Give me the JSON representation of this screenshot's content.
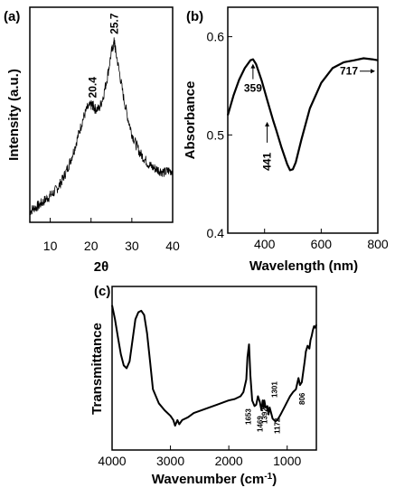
{
  "chart_data": [
    {
      "panel": "(a)",
      "type": "line",
      "xlabel": "2θ",
      "ylabel": "Intensity (a.u.)",
      "xlim": [
        5,
        40
      ],
      "xticks": [
        "10",
        "20",
        "30",
        "40"
      ],
      "xtick_values": [
        10,
        20,
        30,
        40
      ],
      "ylim": [
        0,
        1
      ],
      "series": [
        {
          "x": [
            5,
            6,
            7,
            8,
            9,
            10,
            11,
            12,
            13,
            14,
            15,
            16,
            17,
            18,
            19,
            20,
            20.4,
            21,
            22,
            23,
            24,
            25,
            25.7,
            26,
            27,
            28,
            29,
            30,
            31,
            32,
            33,
            34,
            35,
            36,
            37,
            38,
            39,
            40
          ],
          "y": [
            0.02,
            0.04,
            0.05,
            0.07,
            0.09,
            0.11,
            0.13,
            0.16,
            0.2,
            0.25,
            0.31,
            0.38,
            0.46,
            0.54,
            0.6,
            0.62,
            0.62,
            0.6,
            0.6,
            0.67,
            0.78,
            0.92,
            0.98,
            0.93,
            0.8,
            0.66,
            0.55,
            0.46,
            0.4,
            0.35,
            0.32,
            0.29,
            0.27,
            0.26,
            0.25,
            0.24,
            0.25,
            0.25
          ]
        }
      ],
      "annotations": [
        {
          "text": "20.4",
          "x": 20.4,
          "y": 0.62
        },
        {
          "text": "25.7",
          "x": 25.7,
          "y": 0.98
        }
      ]
    },
    {
      "panel": "(b)",
      "type": "line",
      "xlabel": "Wavelength (nm)",
      "ylabel": "Absorbance",
      "xlim": [
        270,
        800
      ],
      "ylim": [
        0.4,
        0.63
      ],
      "xticks": [
        "400",
        "600",
        "800"
      ],
      "xtick_values": [
        400,
        600,
        800
      ],
      "yticks": [
        "0.4",
        "0.5",
        "0.6"
      ],
      "ytick_values": [
        0.4,
        0.5,
        0.6
      ],
      "series": [
        {
          "x": [
            270,
            290,
            310,
            330,
            350,
            359,
            370,
            390,
            410,
            430,
            441,
            460,
            480,
            490,
            500,
            510,
            530,
            560,
            600,
            640,
            680,
            717,
            750,
            780,
            800
          ],
          "y": [
            0.52,
            0.54,
            0.556,
            0.568,
            0.576,
            0.577,
            0.572,
            0.555,
            0.535,
            0.515,
            0.505,
            0.487,
            0.47,
            0.464,
            0.465,
            0.472,
            0.495,
            0.527,
            0.553,
            0.568,
            0.574,
            0.576,
            0.578,
            0.577,
            0.576
          ]
        }
      ],
      "annotations": [
        {
          "text": "359",
          "x": 359,
          "y": 0.577
        },
        {
          "text": "441",
          "x": 441,
          "y": 0.505
        },
        {
          "text": "717",
          "x": 717,
          "y": 0.576
        }
      ]
    },
    {
      "panel": "(c)",
      "type": "line",
      "xlabel": "Wavenumber (cm⁻¹)",
      "ylabel": "Transmittance",
      "xlim": [
        4000,
        500
      ],
      "ylim": [
        0,
        1
      ],
      "xticks": [
        "4000",
        "3000",
        "2000",
        "1000"
      ],
      "xtick_values": [
        4000,
        3000,
        2000,
        1000
      ],
      "series": [
        {
          "x": [
            4000,
            3950,
            3900,
            3850,
            3800,
            3750,
            3700,
            3650,
            3600,
            3550,
            3500,
            3450,
            3400,
            3350,
            3300,
            3200,
            3100,
            3000,
            2950,
            2920,
            2880,
            2850,
            2800,
            2700,
            2600,
            2400,
            2200,
            2000,
            1900,
            1800,
            1750,
            1700,
            1680,
            1653,
            1630,
            1600,
            1560,
            1530,
            1500,
            1469,
            1440,
            1420,
            1400,
            1392,
            1370,
            1340,
            1320,
            1301,
            1280,
            1250,
            1200,
            1172,
            1140,
            1100,
            1050,
            1000,
            950,
            900,
            850,
            806,
            780,
            750,
            700,
            680,
            650,
            620,
            600,
            580,
            560,
            540,
            520,
            500
          ],
          "y": [
            0.95,
            0.85,
            0.72,
            0.6,
            0.52,
            0.5,
            0.55,
            0.7,
            0.85,
            0.9,
            0.91,
            0.88,
            0.75,
            0.55,
            0.35,
            0.25,
            0.2,
            0.16,
            0.13,
            0.09,
            0.13,
            0.1,
            0.13,
            0.15,
            0.18,
            0.21,
            0.24,
            0.27,
            0.28,
            0.3,
            0.33,
            0.42,
            0.58,
            0.67,
            0.45,
            0.27,
            0.23,
            0.24,
            0.3,
            0.26,
            0.2,
            0.27,
            0.22,
            0.27,
            0.22,
            0.23,
            0.17,
            0.22,
            0.19,
            0.14,
            0.12,
            0.13,
            0.15,
            0.18,
            0.22,
            0.26,
            0.3,
            0.33,
            0.35,
            0.43,
            0.38,
            0.4,
            0.55,
            0.62,
            0.66,
            0.64,
            0.7,
            0.73,
            0.77,
            0.8,
            0.79,
            0.81
          ]
        }
      ],
      "annotations": [
        {
          "text": "1653",
          "x": 1653
        },
        {
          "text": "1469",
          "x": 1469
        },
        {
          "text": "1392",
          "x": 1392
        },
        {
          "text": "1301",
          "x": 1301
        },
        {
          "text": "1172",
          "x": 1172
        },
        {
          "text": "806",
          "x": 806
        }
      ]
    }
  ]
}
